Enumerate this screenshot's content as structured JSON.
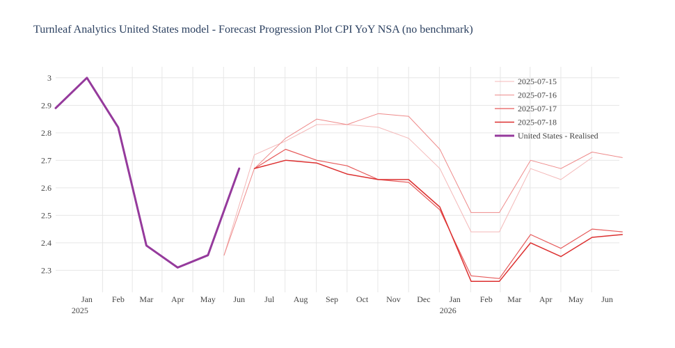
{
  "chart_data": {
    "type": "line",
    "title": "Turnleaf Analytics United States model - Forecast Progression Plot CPI YoY NSA (no benchmark)",
    "xlabel": "",
    "ylabel": "",
    "x_range": [
      "2024-12-15",
      "2026-06-27"
    ],
    "ylim": [
      2.22,
      3.04
    ],
    "y_ticks": [
      2.3,
      2.4,
      2.5,
      2.6,
      2.7,
      2.8,
      2.9,
      3
    ],
    "y_tick_labels": [
      "2.3",
      "2.4",
      "2.5",
      "2.6",
      "2.7",
      "2.8",
      "2.9",
      "3"
    ],
    "x_ticks": [
      {
        "date": "2025-01-15",
        "label": "Jan",
        "sublabel": "2025"
      },
      {
        "date": "2025-02-15",
        "label": "Feb",
        "sublabel": ""
      },
      {
        "date": "2025-03-15",
        "label": "Mar",
        "sublabel": ""
      },
      {
        "date": "2025-04-15",
        "label": "Apr",
        "sublabel": ""
      },
      {
        "date": "2025-05-15",
        "label": "May",
        "sublabel": ""
      },
      {
        "date": "2025-06-15",
        "label": "Jun",
        "sublabel": ""
      },
      {
        "date": "2025-07-15",
        "label": "Jul",
        "sublabel": ""
      },
      {
        "date": "2025-08-15",
        "label": "Aug",
        "sublabel": ""
      },
      {
        "date": "2025-09-15",
        "label": "Sep",
        "sublabel": ""
      },
      {
        "date": "2025-10-15",
        "label": "Oct",
        "sublabel": ""
      },
      {
        "date": "2025-11-15",
        "label": "Nov",
        "sublabel": ""
      },
      {
        "date": "2025-12-15",
        "label": "Dec",
        "sublabel": ""
      },
      {
        "date": "2026-01-15",
        "label": "Jan",
        "sublabel": "2026"
      },
      {
        "date": "2026-02-15",
        "label": "Feb",
        "sublabel": ""
      },
      {
        "date": "2026-03-15",
        "label": "Mar",
        "sublabel": ""
      },
      {
        "date": "2026-04-15",
        "label": "Apr",
        "sublabel": ""
      },
      {
        "date": "2026-05-15",
        "label": "May",
        "sublabel": ""
      },
      {
        "date": "2026-06-15",
        "label": "Jun",
        "sublabel": ""
      }
    ],
    "legend_position": "top-right",
    "grid": true,
    "series": [
      {
        "name": "2025-07-15",
        "color": "#f4b8b8",
        "width": 1,
        "x": [
          "2025-05-31",
          "2025-06-30",
          "2025-07-31",
          "2025-08-31",
          "2025-09-30",
          "2025-10-31",
          "2025-11-30",
          "2025-12-31",
          "2026-01-31",
          "2026-02-28",
          "2026-03-31",
          "2026-04-30",
          "2026-05-31"
        ],
        "y": [
          2.355,
          2.72,
          2.77,
          2.83,
          2.83,
          2.82,
          2.78,
          2.67,
          2.44,
          2.44,
          2.67,
          2.63,
          2.71
        ]
      },
      {
        "name": "2025-07-16",
        "color": "#ee8a8a",
        "width": 1,
        "x": [
          "2025-05-31",
          "2025-06-30",
          "2025-07-31",
          "2025-08-31",
          "2025-09-30",
          "2025-10-31",
          "2025-11-30",
          "2025-12-31",
          "2026-01-31",
          "2026-02-28",
          "2026-03-31",
          "2026-04-30",
          "2026-05-31",
          "2026-06-30"
        ],
        "y": [
          2.355,
          2.67,
          2.78,
          2.85,
          2.83,
          2.87,
          2.86,
          2.74,
          2.51,
          2.51,
          2.7,
          2.67,
          2.73,
          2.71
        ]
      },
      {
        "name": "2025-07-17",
        "color": "#e65a5a",
        "width": 1.2,
        "x": [
          "2025-06-30",
          "2025-07-31",
          "2025-08-31",
          "2025-09-30",
          "2025-10-31",
          "2025-11-30",
          "2025-12-31",
          "2026-01-31",
          "2026-02-28",
          "2026-03-31",
          "2026-04-30",
          "2026-05-31",
          "2026-06-30"
        ],
        "y": [
          2.67,
          2.74,
          2.7,
          2.68,
          2.63,
          2.62,
          2.52,
          2.28,
          2.27,
          2.43,
          2.38,
          2.45,
          2.44
        ]
      },
      {
        "name": "2025-07-18",
        "color": "#dc2f2f",
        "width": 1.5,
        "x": [
          "2025-06-30",
          "2025-07-31",
          "2025-08-31",
          "2025-09-30",
          "2025-10-31",
          "2025-11-30",
          "2025-12-31",
          "2026-01-31",
          "2026-02-28",
          "2026-03-31",
          "2026-04-30",
          "2026-05-31",
          "2026-06-30"
        ],
        "y": [
          2.67,
          2.7,
          2.69,
          2.65,
          2.63,
          2.63,
          2.53,
          2.26,
          2.26,
          2.4,
          2.35,
          2.42,
          2.43
        ]
      },
      {
        "name": "United States - Realised",
        "color": "#953a9c",
        "width": 3,
        "x": [
          "2024-12-15",
          "2025-01-15",
          "2025-02-15",
          "2025-03-15",
          "2025-04-15",
          "2025-05-15",
          "2025-06-15"
        ],
        "y": [
          2.89,
          3.0,
          2.82,
          2.39,
          2.31,
          2.355,
          2.67
        ]
      }
    ]
  }
}
